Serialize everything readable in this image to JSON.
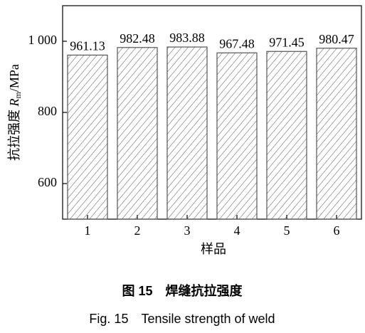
{
  "chart_data": {
    "type": "bar",
    "categories": [
      "1",
      "2",
      "3",
      "4",
      "5",
      "6"
    ],
    "values": [
      961.13,
      982.48,
      983.88,
      967.48,
      971.45,
      980.47
    ],
    "color": "#555555",
    "ylim": [
      500,
      1100
    ],
    "yticks": [
      600,
      800,
      {
        "value": 1000,
        "label": "1 000"
      }
    ],
    "x_label": "样品",
    "y_label": {
      "prefix": "抗拉强度 ",
      "symbol": "R",
      "subscript": "m",
      "unit": "/MPa"
    },
    "caption_cn": "图 15　焊缝抗拉强度",
    "caption_en": "Fig. 15　Tensile strength of weld"
  }
}
